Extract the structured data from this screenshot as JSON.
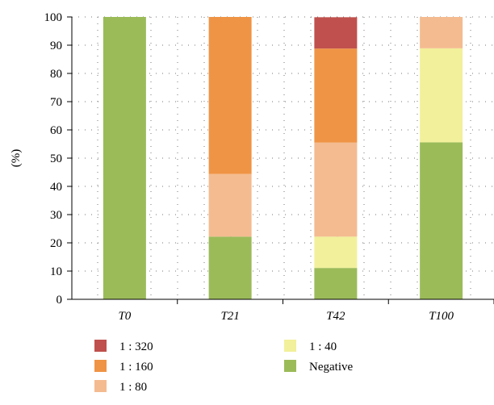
{
  "chart_data": {
    "type": "bar",
    "stacked": true,
    "categories": [
      "T0",
      "T21",
      "T42",
      "T100"
    ],
    "ylabel": "(%)",
    "xlabel": "",
    "ylim": [
      0,
      100
    ],
    "yticks": [
      0,
      10,
      20,
      30,
      40,
      50,
      60,
      70,
      80,
      90,
      100
    ],
    "grid": "dotted",
    "legend_placement": "bottom",
    "series": [
      {
        "name": "Negative",
        "color": "#9bbb59",
        "values": [
          100,
          22.2,
          11.1,
          55.6
        ]
      },
      {
        "name": "1 : 40",
        "color": "#f2f09a",
        "values": [
          0,
          0,
          11.1,
          33.3
        ]
      },
      {
        "name": "1 : 80",
        "color": "#f4bb90",
        "values": [
          0,
          22.2,
          33.3,
          11.1
        ]
      },
      {
        "name": "1 : 160",
        "color": "#ef9445",
        "values": [
          0,
          55.6,
          33.3,
          0
        ]
      },
      {
        "name": "1 : 320",
        "color": "#c0504d",
        "values": [
          0,
          0,
          11.1,
          0
        ]
      }
    ],
    "legend_order": [
      "1 : 320",
      "1 : 160",
      "1 : 80",
      "1 : 40",
      "Negative"
    ]
  }
}
